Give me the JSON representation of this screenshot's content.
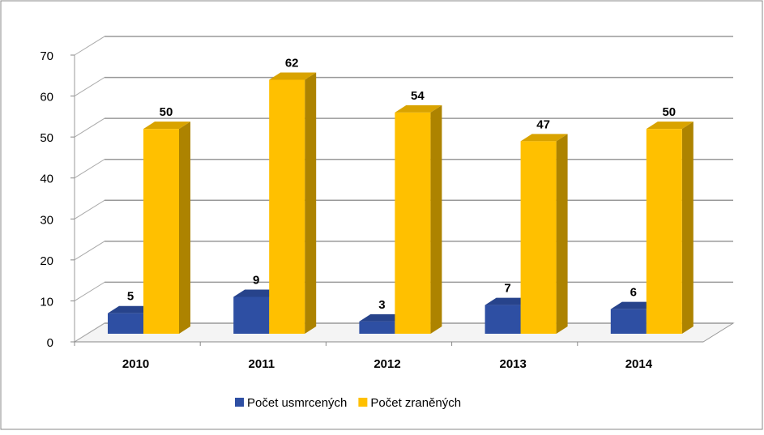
{
  "chart_data": {
    "type": "bar3d",
    "categories": [
      "2010",
      "2011",
      "2012",
      "2013",
      "2014"
    ],
    "series": [
      {
        "name": "Počet usmrcených",
        "color": "#2e4fa3",
        "values": [
          5,
          9,
          3,
          7,
          6
        ]
      },
      {
        "name": "Počet zraněných",
        "color": "#ffc000",
        "values": [
          50,
          62,
          54,
          47,
          50
        ]
      }
    ],
    "ylim": [
      0,
      70
    ],
    "yticks": [
      0,
      10,
      20,
      30,
      40,
      50,
      60,
      70
    ],
    "grid": true,
    "legend": "bottom"
  }
}
